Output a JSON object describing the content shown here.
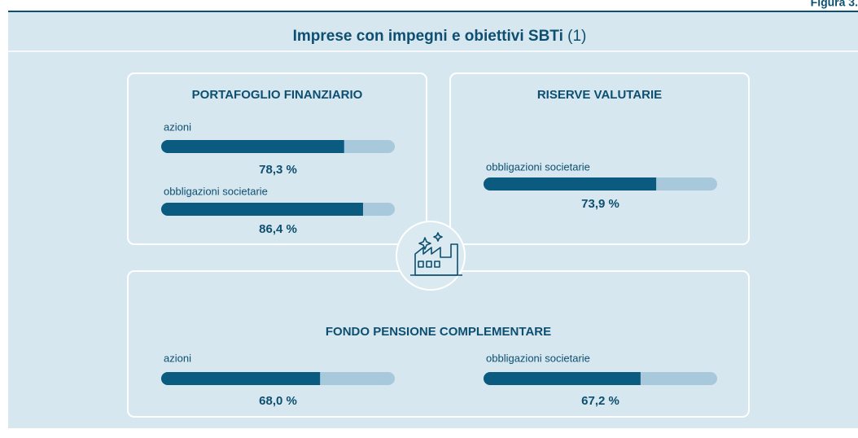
{
  "figure_label": "Figura 3.",
  "title": "Imprese con impegni e obiettivi SBTi",
  "title_note": "(1)",
  "xlim": [
    0,
    100
  ],
  "panels": [
    {
      "title": "PORTAFOGLIO FINANZIARIO",
      "items": [
        {
          "label": "azioni",
          "value": 78.3,
          "value_label": "78,3 %"
        },
        {
          "label": "obbligazioni societarie",
          "value": 86.4,
          "value_label": "86,4 %"
        }
      ]
    },
    {
      "title": "RISERVE VALUTARIE",
      "items": [
        {
          "label": "obbligazioni societarie",
          "value": 73.9,
          "value_label": "73,9 %"
        }
      ]
    },
    {
      "title": "FONDO PENSIONE COMPLEMENTARE",
      "items": [
        {
          "label": "azioni",
          "value": 68.0,
          "value_label": "68,0 %"
        },
        {
          "label": "obbligazioni societarie",
          "value": 67.2,
          "value_label": "67,2 %"
        }
      ]
    }
  ]
}
